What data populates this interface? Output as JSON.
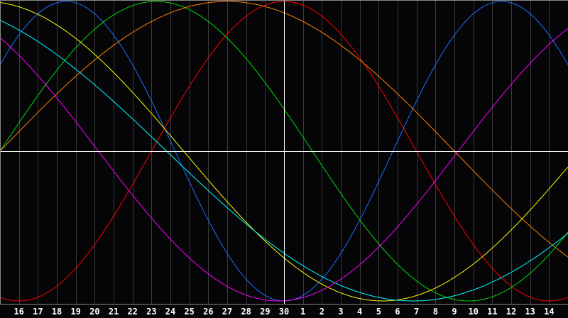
{
  "chart_data": {
    "type": "line",
    "title": "",
    "xlabel": "",
    "ylabel": "",
    "x_tick_labels": [
      "16",
      "17",
      "18",
      "19",
      "20",
      "21",
      "22",
      "23",
      "24",
      "25",
      "26",
      "27",
      "28",
      "29",
      "30",
      "1",
      "2",
      "3",
      "4",
      "5",
      "6",
      "7",
      "8",
      "9",
      "10",
      "11",
      "12",
      "13",
      "14"
    ],
    "highlighted_day": "30",
    "ylim": [
      -1,
      1
    ],
    "grid": true,
    "background": "#050508",
    "grid_color": "#3a3a3a",
    "axis_color": "#ffffff",
    "series": [
      {
        "color": "#1a6fff",
        "period_days": 23,
        "cycle_day_at_highlight": 17.25
      },
      {
        "color": "#ff0000",
        "period_days": 28,
        "cycle_day_at_highlight": 7
      },
      {
        "color": "#00e000",
        "period_days": 33,
        "cycle_day_at_highlight": 15
      },
      {
        "color": "#ff8000",
        "period_days": 48,
        "cycle_day_at_highlight": 15
      },
      {
        "color": "#ffff00",
        "period_days": 42,
        "cycle_day_at_highlight": 26.3
      },
      {
        "color": "#00ffff",
        "period_days": 52,
        "cycle_day_at_highlight": 32.2
      },
      {
        "color": "#ff00ff",
        "period_days": 38,
        "cycle_day_at_highlight": 28.8
      }
    ]
  }
}
